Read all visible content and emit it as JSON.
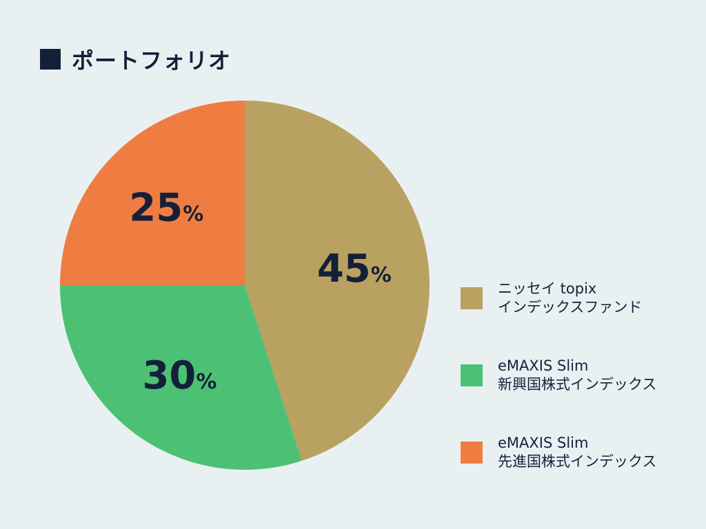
{
  "title": "ポートフォリオ",
  "chart_data": {
    "type": "pie",
    "start_angle_deg": 0,
    "direction": "clockwise",
    "slices": [
      {
        "line1": "ニッセイ topix",
        "line2": "インデックスファンド",
        "value": 45,
        "value_text": "45",
        "unit": "%",
        "color": "#b9a161"
      },
      {
        "line1": "eMAXIS Slim",
        "line2": "新興国株式インデックス",
        "value": 30,
        "value_text": "30",
        "unit": "%",
        "color": "#4cc174"
      },
      {
        "line1": "eMAXIS Slim",
        "line2": "先進国株式インデックス",
        "value": 25,
        "value_text": "25",
        "unit": "%",
        "color": "#ef7d42"
      }
    ],
    "legend_position": "right"
  }
}
